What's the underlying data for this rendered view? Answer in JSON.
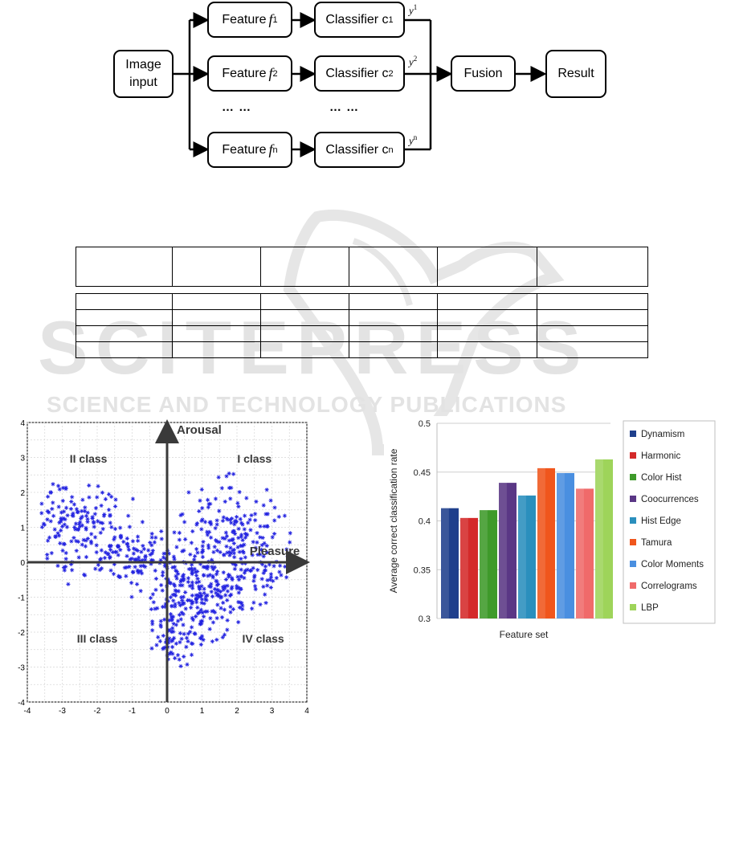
{
  "diagram": {
    "input_label": "Image input",
    "feature_label": "Feature",
    "feature_symbol": "f",
    "classifier_label": "Classifier c",
    "rows": [
      {
        "subscript": "1",
        "output": "y",
        "output_sup": "1"
      },
      {
        "subscript": "2",
        "output": "y",
        "output_sup": "2"
      },
      {
        "subscript": "n",
        "output": "y",
        "output_sup": "n"
      }
    ],
    "ellipsis_feature": "… …",
    "ellipsis_classifier": "… …",
    "fusion_label": "Fusion",
    "result_label": "Result"
  },
  "watermark": {
    "line1": "SCITEPRESS",
    "line2": "SCIENCE AND TECHNOLOGY PUBLICATIONS"
  },
  "table": {
    "columns": 6,
    "rows": 6
  },
  "scatter": {
    "type": "scatter",
    "x_ticks": [
      "-4",
      "-3",
      "-2",
      "-1",
      "0",
      "1",
      "2",
      "3",
      "4"
    ],
    "y_ticks": [
      "4",
      "3",
      "2",
      "1",
      "0",
      "-1",
      "-2",
      "-3",
      "-4"
    ],
    "xlim": [
      -4,
      4
    ],
    "ylim": [
      -4,
      4
    ],
    "grid": true,
    "marker_color": "#2323e0",
    "axis_label_y": "Arousal",
    "axis_label_x": "Pleasure",
    "quadrants": [
      "I class",
      "II class",
      "III class",
      "IV class"
    ]
  },
  "chart_data": {
    "type": "bar",
    "title": "",
    "xlabel": "Feature set",
    "ylabel": "Average correct classification rate",
    "ylim": [
      0.3,
      0.5
    ],
    "y_ticks": [
      "0.5",
      "0.45",
      "0.4",
      "0.35",
      "0.3"
    ],
    "grid": true,
    "legend_position": "right",
    "categories": [
      "Dynamism",
      "Harmonic",
      "Color Hist",
      "Coocurrences",
      "Hist Edge",
      "Tamura",
      "Color Moments",
      "Correlograms",
      "LBP"
    ],
    "values": [
      0.413,
      0.403,
      0.411,
      0.439,
      0.426,
      0.454,
      0.449,
      0.433,
      0.463
    ],
    "colors": [
      "#1f3f8c",
      "#d42a2a",
      "#3e9a2a",
      "#5a3785",
      "#2a8fbd",
      "#f0561c",
      "#4a8fe0",
      "#f06a6a",
      "#9ed45a"
    ]
  }
}
